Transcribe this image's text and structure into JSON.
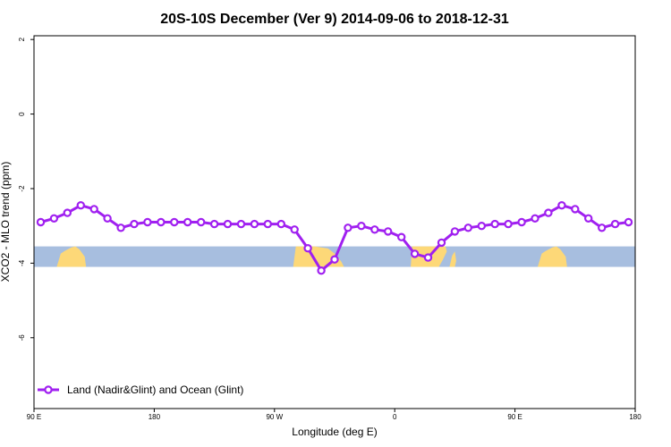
{
  "chart_data": {
    "type": "line",
    "title": "20S-10S December (Ver 9)   2014-09-06 to 2018-12-31",
    "xlabel": "Longitude (deg E)",
    "ylabel": "XCO2 - MLO trend (ppm)",
    "x_ticks": [
      {
        "value": 90,
        "label": "90 E"
      },
      {
        "value": 180,
        "label": "180"
      },
      {
        "value": 270,
        "label": "90 W"
      },
      {
        "value": 360,
        "label": "0"
      },
      {
        "value": 450,
        "label": "90 E"
      },
      {
        "value": 540,
        "label": "180"
      }
    ],
    "y_ticks": [
      {
        "value": 2,
        "label": "2"
      },
      {
        "value": 0,
        "label": "0"
      },
      {
        "value": -2,
        "label": "-2"
      },
      {
        "value": -4,
        "label": "-4"
      },
      {
        "value": -6,
        "label": "-6"
      }
    ],
    "xlim": [
      90,
      540
    ],
    "ylim": [
      -7.9,
      2.1
    ],
    "land_ocean_band": {
      "ylim": [
        -4.1,
        -3.55
      ],
      "ocean_color": "#a7bedf",
      "land_color": "#fdd878"
    },
    "series": [
      {
        "name": "Land (Nadir&Glint) and Ocean (Glint)",
        "color": "#a020f0",
        "x": [
          95,
          105,
          115,
          125,
          135,
          145,
          155,
          165,
          175,
          185,
          195,
          205,
          215,
          225,
          235,
          245,
          255,
          265,
          275,
          285,
          295,
          305,
          315,
          325,
          335,
          345,
          355,
          365,
          375,
          385,
          395,
          405,
          415,
          425,
          435,
          445,
          455,
          465,
          475,
          485,
          495,
          505,
          515,
          525,
          535
        ],
        "y": [
          -2.9,
          -2.8,
          -2.65,
          -2.45,
          -2.55,
          -2.8,
          -3.05,
          -2.95,
          -2.9,
          -2.9,
          -2.9,
          -2.9,
          -2.9,
          -2.95,
          -2.95,
          -2.95,
          -2.95,
          -2.95,
          -2.95,
          -3.1,
          -3.6,
          -4.2,
          -3.9,
          -3.05,
          -3.0,
          -3.1,
          -3.15,
          -3.3,
          -3.75,
          -3.85,
          -3.45,
          -3.15,
          -3.05,
          -3.0,
          -2.95,
          -2.95,
          -2.9,
          -2.8,
          -2.65,
          -2.45,
          -2.55,
          -2.8,
          -3.05,
          -2.95,
          -2.9
        ]
      }
    ],
    "legend_position": "bottom-left"
  }
}
